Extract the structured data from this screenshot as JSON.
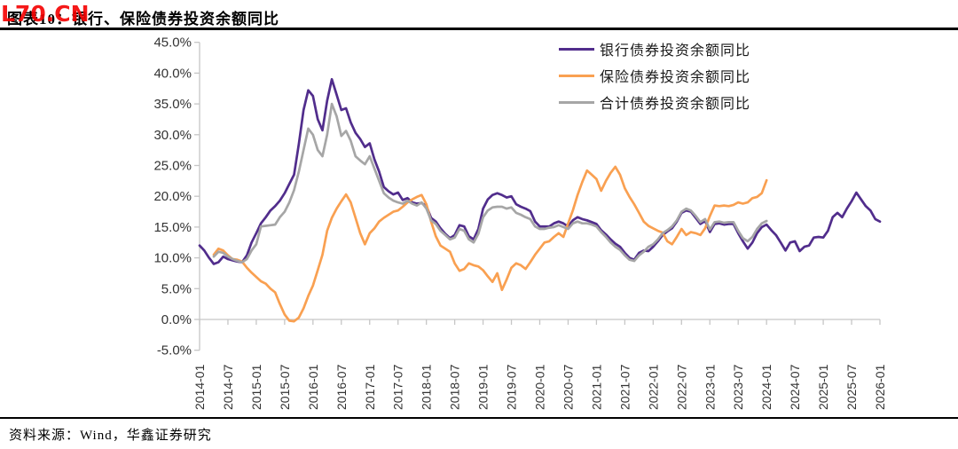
{
  "watermark": {
    "text": "L70.CN",
    "color": "#f40000"
  },
  "header": {
    "title": "图表10：银行、保险债券投资余额同比"
  },
  "footer": {
    "source": "资料来源：Wind，华鑫证券研究"
  },
  "chart_data": {
    "type": "line",
    "title": "银行、保险债券投资余额同比",
    "x_start": "2014-01",
    "x_end": "2026-01",
    "x_interval_months": 1,
    "x_tick_labels": [
      "2014-01",
      "2014-07",
      "2015-01",
      "2015-07",
      "2016-01",
      "2016-07",
      "2017-01",
      "2017-07",
      "2018-01",
      "2018-07",
      "2019-01",
      "2019-07",
      "2020-01",
      "2020-07",
      "2021-01",
      "2021-07",
      "2022-01",
      "2022-07",
      "2023-01",
      "2023-07",
      "2024-01",
      "2024-07",
      "2025-01",
      "2025-07",
      "2026-01"
    ],
    "y_tick_labels": [
      "45.0%",
      "40.0%",
      "35.0%",
      "30.0%",
      "25.0%",
      "20.0%",
      "15.0%",
      "10.0%",
      "5.0%",
      "0.0%",
      "-5.0%"
    ],
    "y_ticks": [
      45,
      40,
      35,
      30,
      25,
      20,
      15,
      10,
      5,
      0,
      -5
    ],
    "ylim": [
      -5,
      45
    ],
    "y_unit": "%",
    "gridlines": false,
    "axis_color": "#c6c6c6",
    "tick_label_color": "#333333",
    "legend_position": "top-right",
    "series": [
      {
        "name": "银行债券投资余额同比",
        "color": "#512d8c",
        "values": [
          12.0,
          11.2,
          10.0,
          9.0,
          9.3,
          10.2,
          9.8,
          9.6,
          9.4,
          9.3,
          10.4,
          12.5,
          14.0,
          15.6,
          16.6,
          17.7,
          18.4,
          19.3,
          20.5,
          22.0,
          23.5,
          28.5,
          34.0,
          37.2,
          36.3,
          32.5,
          30.7,
          35.5,
          39.0,
          36.5,
          34.0,
          34.3,
          32.0,
          30.3,
          29.3,
          28.0,
          28.6,
          26.0,
          24.0,
          21.5,
          20.8,
          20.3,
          20.6,
          19.4,
          19.7,
          19.0,
          18.8,
          18.9,
          18.4,
          16.5,
          15.9,
          14.8,
          13.9,
          13.2,
          13.7,
          15.3,
          15.1,
          13.5,
          13.0,
          14.7,
          18.0,
          19.5,
          20.2,
          20.5,
          20.2,
          19.8,
          20.0,
          18.7,
          18.3,
          18.0,
          17.6,
          15.9,
          15.1,
          15.1,
          15.1,
          15.6,
          15.9,
          15.6,
          15.1,
          16.1,
          16.6,
          16.3,
          16.1,
          15.8,
          15.5,
          14.5,
          13.8,
          13.0,
          12.3,
          11.8,
          10.8,
          10.0,
          9.7,
          10.8,
          11.2,
          11.1,
          11.8,
          12.7,
          13.7,
          14.3,
          14.8,
          15.9,
          17.3,
          17.7,
          17.5,
          16.5,
          15.5,
          16.0,
          14.2,
          15.5,
          15.6,
          15.4,
          15.5,
          15.5,
          14.0,
          12.7,
          11.5,
          12.5,
          14.0,
          15.0,
          15.4,
          14.5,
          13.7,
          12.5,
          11.2,
          12.5,
          12.7,
          11.1,
          11.8,
          12.0,
          13.3,
          13.4,
          13.3,
          14.4,
          16.6,
          17.3,
          16.6,
          18.0,
          19.2,
          20.6,
          19.5,
          18.4,
          17.7,
          16.3,
          15.9
        ]
      },
      {
        "name": "保险债券投资余额同比",
        "color": "#f9a051",
        "values": [
          null,
          null,
          null,
          10.5,
          11.5,
          11.2,
          10.4,
          9.8,
          9.7,
          9.4,
          8.4,
          7.6,
          6.9,
          6.2,
          5.8,
          5.0,
          4.4,
          2.5,
          0.8,
          -0.2,
          -0.3,
          0.3,
          1.8,
          3.8,
          5.5,
          8.0,
          10.5,
          14.4,
          16.5,
          18.0,
          19.2,
          20.3,
          19.0,
          16.5,
          14.0,
          12.2,
          14.0,
          14.8,
          15.9,
          16.5,
          17.0,
          17.5,
          17.7,
          18.3,
          19.0,
          19.5,
          19.9,
          20.2,
          18.7,
          15.9,
          13.5,
          12.0,
          11.5,
          11.0,
          9.1,
          7.9,
          8.2,
          9.1,
          8.8,
          8.6,
          8.0,
          7.0,
          6.1,
          7.5,
          4.8,
          6.5,
          8.4,
          9.1,
          8.8,
          8.2,
          9.3,
          10.5,
          11.5,
          12.5,
          12.7,
          13.4,
          14.0,
          13.4,
          15.6,
          17.7,
          20.2,
          22.3,
          24.2,
          23.5,
          22.8,
          20.9,
          22.5,
          23.8,
          24.8,
          23.5,
          21.3,
          19.9,
          18.7,
          17.3,
          15.9,
          15.2,
          14.8,
          14.4,
          14.1,
          12.7,
          12.2,
          13.4,
          14.7,
          13.7,
          14.2,
          14.0,
          13.7,
          14.8,
          16.8,
          18.5,
          18.4,
          18.5,
          18.4,
          18.6,
          19.0,
          18.8,
          19.0,
          19.7,
          19.9,
          20.5,
          22.6
        ]
      },
      {
        "name": "合计债券投资余额同比",
        "color": "#a6a6a6",
        "values": [
          null,
          null,
          null,
          10.2,
          11.0,
          10.8,
          10.2,
          9.8,
          9.5,
          9.3,
          9.8,
          11.2,
          12.2,
          15.1,
          15.2,
          15.3,
          15.4,
          16.6,
          17.5,
          19.0,
          21.0,
          24.0,
          27.5,
          31.0,
          30.0,
          27.5,
          26.5,
          30.0,
          35.0,
          33.0,
          29.8,
          30.6,
          29.0,
          26.5,
          25.8,
          25.2,
          26.5,
          24.5,
          22.5,
          20.5,
          19.8,
          19.3,
          19.0,
          18.8,
          19.3,
          18.8,
          18.5,
          19.0,
          18.0,
          16.1,
          15.5,
          14.4,
          13.7,
          13.0,
          13.3,
          14.7,
          14.4,
          13.0,
          12.5,
          13.9,
          16.6,
          17.7,
          18.2,
          18.3,
          18.3,
          18.0,
          18.2,
          17.3,
          17.0,
          16.6,
          16.3,
          15.1,
          14.7,
          14.7,
          14.9,
          15.0,
          15.3,
          15.0,
          14.7,
          15.6,
          15.9,
          15.6,
          15.6,
          15.4,
          15.1,
          14.2,
          13.4,
          12.5,
          11.8,
          11.3,
          10.4,
          9.7,
          9.5,
          10.4,
          11.0,
          11.8,
          12.2,
          13.0,
          14.0,
          14.5,
          15.1,
          16.1,
          17.5,
          18.0,
          17.7,
          16.8,
          15.8,
          16.3,
          14.6,
          15.8,
          15.9,
          15.7,
          15.8,
          15.8,
          14.4,
          13.2,
          12.7,
          13.4,
          14.7,
          15.6,
          16.0
        ]
      }
    ]
  }
}
